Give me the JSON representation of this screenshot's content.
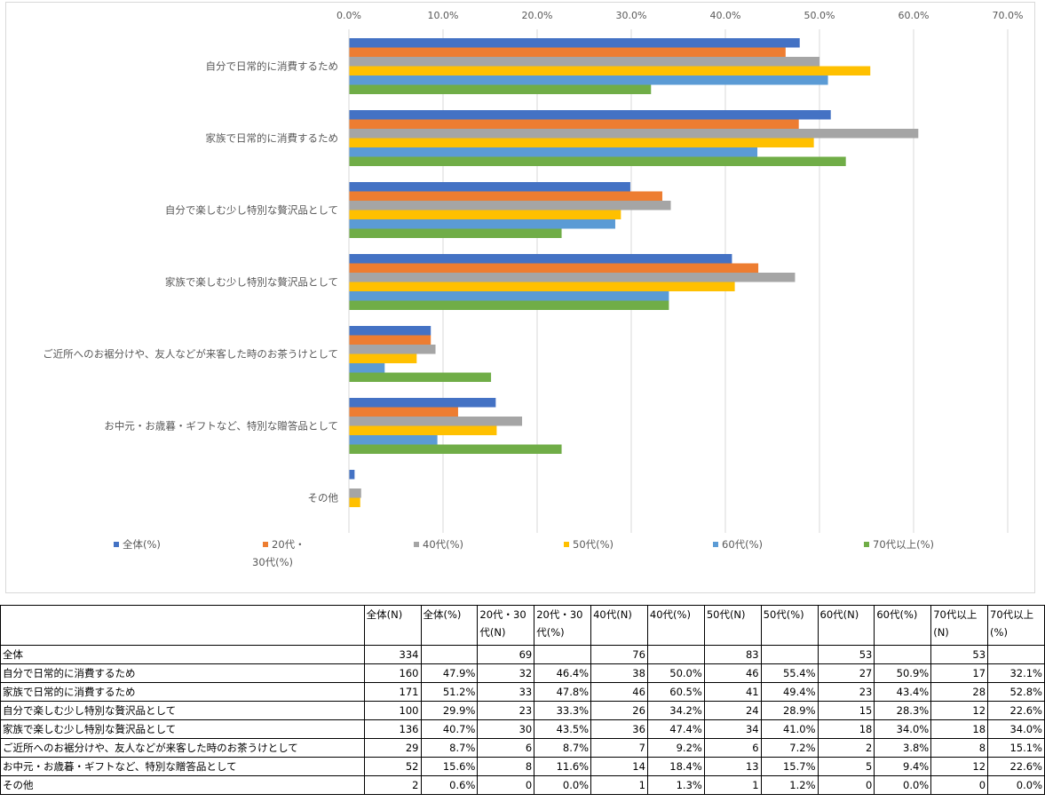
{
  "chart_data": {
    "type": "bar",
    "orientation": "horizontal",
    "xlim": [
      0,
      70
    ],
    "x_ticks": [
      "0.0%",
      "10.0%",
      "20.0%",
      "30.0%",
      "40.0%",
      "50.0%",
      "60.0%",
      "70.0%"
    ],
    "grid": true,
    "legend_position": "bottom",
    "categories": [
      "自分で日常的に消費するため",
      "家族で日常的に消費するため",
      "自分で楽しむ少し特別な贅沢品として",
      "家族で楽しむ少し特別な贅沢品として",
      "ご近所へのお裾分けや、友人などが来客した時のお茶うけとして",
      "お中元・お歳暮・ギフトなど、特別な贈答品として",
      "その他"
    ],
    "series": [
      {
        "name": "全体(%)",
        "color": "#4472C4",
        "values": [
          47.9,
          51.2,
          29.9,
          40.7,
          8.7,
          15.6,
          0.6
        ]
      },
      {
        "name": "20代・30代(%)",
        "color": "#ED7D31",
        "values": [
          46.4,
          47.8,
          33.3,
          43.5,
          8.7,
          11.6,
          0.0
        ]
      },
      {
        "name": "40代(%)",
        "color": "#A5A5A5",
        "values": [
          50.0,
          60.5,
          34.2,
          47.4,
          9.2,
          18.4,
          1.3
        ]
      },
      {
        "name": "50代(%)",
        "color": "#FFC000",
        "values": [
          55.4,
          49.4,
          28.9,
          41.0,
          7.2,
          15.7,
          1.2
        ]
      },
      {
        "name": "60代(%)",
        "color": "#5B9BD5",
        "values": [
          50.9,
          43.4,
          28.3,
          34.0,
          3.8,
          9.4,
          0.0
        ]
      },
      {
        "name": "70代以上(%)",
        "color": "#70AD47",
        "values": [
          32.1,
          52.8,
          22.6,
          34.0,
          15.1,
          22.6,
          0.0
        ]
      }
    ]
  },
  "legend_lines": [
    [
      "全体(%)"
    ],
    [
      "20代・",
      "30代(%)"
    ],
    [
      "40代(%)"
    ],
    [
      "50代(%)"
    ],
    [
      "60代(%)"
    ],
    [
      "70代以上(%)"
    ]
  ],
  "table": {
    "headers": [
      "",
      "全体(N)",
      "全体(%)",
      "20代・30代(N)",
      "20代・30代(%)",
      "40代(N)",
      "40代(%)",
      "50代(N)",
      "50代(%)",
      "60代(N)",
      "60代(%)",
      "70代以上(N)",
      "70代以上(%)"
    ],
    "rows": [
      [
        "全体",
        "334",
        "",
        "69",
        "",
        "76",
        "",
        "83",
        "",
        "53",
        "",
        "53",
        ""
      ],
      [
        "自分で日常的に消費するため",
        "160",
        "47.9%",
        "32",
        "46.4%",
        "38",
        "50.0%",
        "46",
        "55.4%",
        "27",
        "50.9%",
        "17",
        "32.1%"
      ],
      [
        "家族で日常的に消費するため",
        "171",
        "51.2%",
        "33",
        "47.8%",
        "46",
        "60.5%",
        "41",
        "49.4%",
        "23",
        "43.4%",
        "28",
        "52.8%"
      ],
      [
        "自分で楽しむ少し特別な贅沢品として",
        "100",
        "29.9%",
        "23",
        "33.3%",
        "26",
        "34.2%",
        "24",
        "28.9%",
        "15",
        "28.3%",
        "12",
        "22.6%"
      ],
      [
        "家族で楽しむ少し特別な贅沢品として",
        "136",
        "40.7%",
        "30",
        "43.5%",
        "36",
        "47.4%",
        "34",
        "41.0%",
        "18",
        "34.0%",
        "18",
        "34.0%"
      ],
      [
        "ご近所へのお裾分けや、友人などが来客した時のお茶うけとして",
        "29",
        "8.7%",
        "6",
        "8.7%",
        "7",
        "9.2%",
        "6",
        "7.2%",
        "2",
        "3.8%",
        "8",
        "15.1%"
      ],
      [
        "お中元・お歳暮・ギフトなど、特別な贈答品として",
        "52",
        "15.6%",
        "8",
        "11.6%",
        "14",
        "18.4%",
        "13",
        "15.7%",
        "5",
        "9.4%",
        "12",
        "22.6%"
      ],
      [
        "その他",
        "2",
        "0.6%",
        "0",
        "0.0%",
        "1",
        "1.3%",
        "1",
        "1.2%",
        "0",
        "0.0%",
        "0",
        "0.0%"
      ]
    ]
  }
}
